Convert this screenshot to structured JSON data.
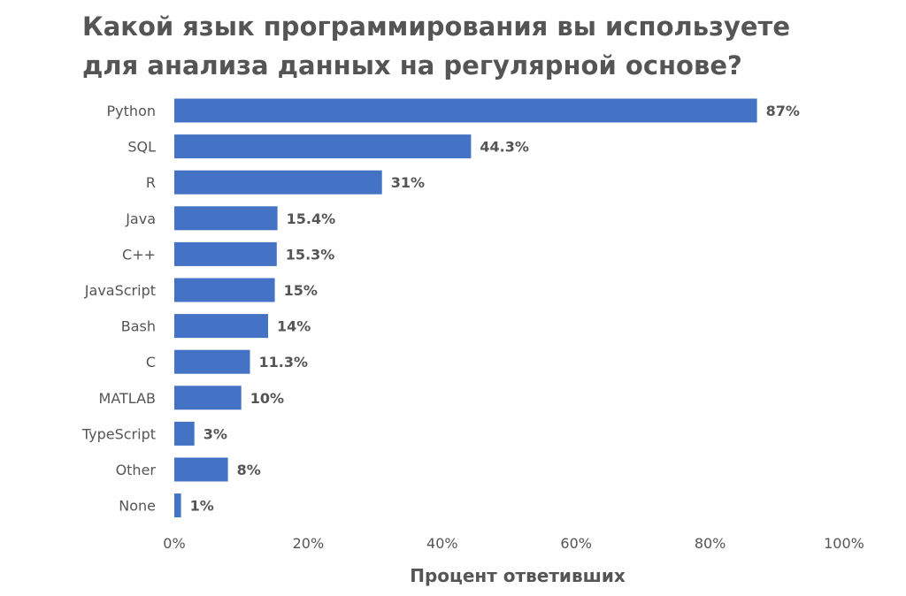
{
  "chart_data": {
    "type": "bar",
    "orientation": "horizontal",
    "title": "Какой язык программирования вы используете\nдля анализа данных на регулярной основе?",
    "xlabel": "Процент ответивших",
    "ylabel": "",
    "categories": [
      "Python",
      "SQL",
      "R",
      "Java",
      "C++",
      "JavaScript",
      "Bash",
      "C",
      "MATLAB",
      "TypeScript",
      "Other",
      "None"
    ],
    "values": [
      87,
      44.3,
      31,
      15.4,
      15.3,
      15,
      14,
      11.3,
      10,
      3,
      8,
      1
    ],
    "value_labels": [
      "87%",
      "44.3%",
      "31%",
      "15.4%",
      "15.3%",
      "15%",
      "14%",
      "11.3%",
      "10%",
      "3%",
      "8%",
      "1%"
    ],
    "xlim": [
      0,
      100
    ],
    "xticks": [
      0,
      20,
      40,
      60,
      80,
      100
    ],
    "xtick_labels": [
      "0%",
      "20%",
      "40%",
      "60%",
      "80%",
      "100%"
    ],
    "grid": false,
    "legend": "none",
    "bar_color": "#4472C4",
    "text_color": "#555555"
  }
}
